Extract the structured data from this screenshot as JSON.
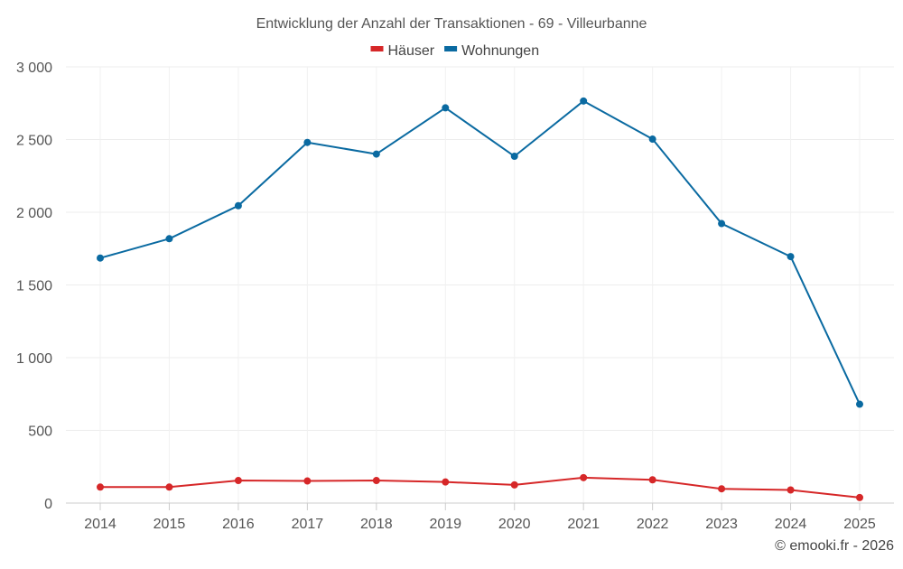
{
  "chart_data": {
    "type": "line",
    "title": "Entwicklung der Anzahl der Transaktionen - 69 - Villeurbanne",
    "xlabel": "",
    "ylabel": "",
    "categories": [
      "2014",
      "2015",
      "2016",
      "2017",
      "2018",
      "2019",
      "2020",
      "2021",
      "2022",
      "2023",
      "2024",
      "2025"
    ],
    "ylim": [
      0,
      3000
    ],
    "yticks": [
      0,
      500,
      1000,
      1500,
      2000,
      2500,
      3000
    ],
    "ytick_labels": [
      "0",
      "500",
      "1 000",
      "1 500",
      "2 000",
      "2 500",
      "3 000"
    ],
    "grid": true,
    "legend_position": "top-center",
    "series": [
      {
        "name": "Häuser",
        "color": "#d62728",
        "values": [
          110,
          110,
          155,
          152,
          155,
          145,
          125,
          175,
          160,
          98,
          90,
          38
        ]
      },
      {
        "name": "Wohnungen",
        "color": "#0a6aa1",
        "values": [
          1685,
          1818,
          2045,
          2480,
          2400,
          2718,
          2385,
          2765,
          2503,
          1922,
          1695,
          680
        ]
      }
    ]
  },
  "credit": "© emooki.fr - 2026"
}
